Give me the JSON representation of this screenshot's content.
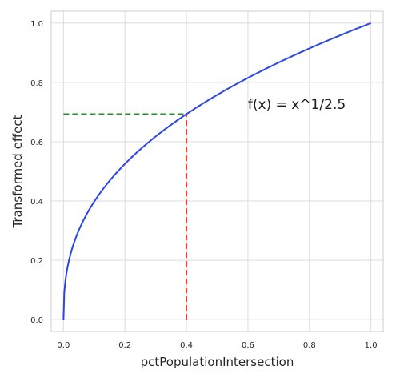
{
  "chart_data": {
    "type": "line",
    "title": "",
    "xlabel": "pctPopulationIntersection",
    "ylabel": "Transformed effect",
    "xlim": [
      -0.04,
      1.04
    ],
    "ylim": [
      -0.04,
      1.04
    ],
    "x_ticks": [
      0.0,
      0.2,
      0.4,
      0.6,
      0.8,
      1.0
    ],
    "y_ticks": [
      0.0,
      0.2,
      0.4,
      0.6,
      0.8,
      1.0
    ],
    "x_tick_labels": [
      "0.0",
      "0.2",
      "0.4",
      "0.6",
      "0.8",
      "1.0"
    ],
    "y_tick_labels": [
      "0.0",
      "0.2",
      "0.4",
      "0.6",
      "0.8",
      "1.0"
    ],
    "grid": true,
    "series": [
      {
        "function": "x^(1/2.5)",
        "x_range": [
          0.0,
          1.0
        ],
        "color": "#2b46e8",
        "style": "solid"
      }
    ],
    "reference_lines": [
      {
        "orientation": "horizontal",
        "y": 0.693,
        "x_from": 0.0,
        "x_to": 0.4,
        "color": "#2e8b2e",
        "style": "dashed"
      },
      {
        "orientation": "vertical",
        "x": 0.4,
        "y_from": 0.0,
        "y_to": 0.693,
        "color": "#e8403a",
        "style": "dashed"
      }
    ],
    "annotations": [
      {
        "text": "f(x) = x^1/2.5",
        "x": 0.6,
        "y": 0.71
      }
    ],
    "colors": {
      "grid": "#dddddd",
      "frame": "#cccccc",
      "curve": "#2b46e8",
      "horizontal_marker": "#2e8b2e",
      "vertical_marker": "#e8403a"
    }
  }
}
